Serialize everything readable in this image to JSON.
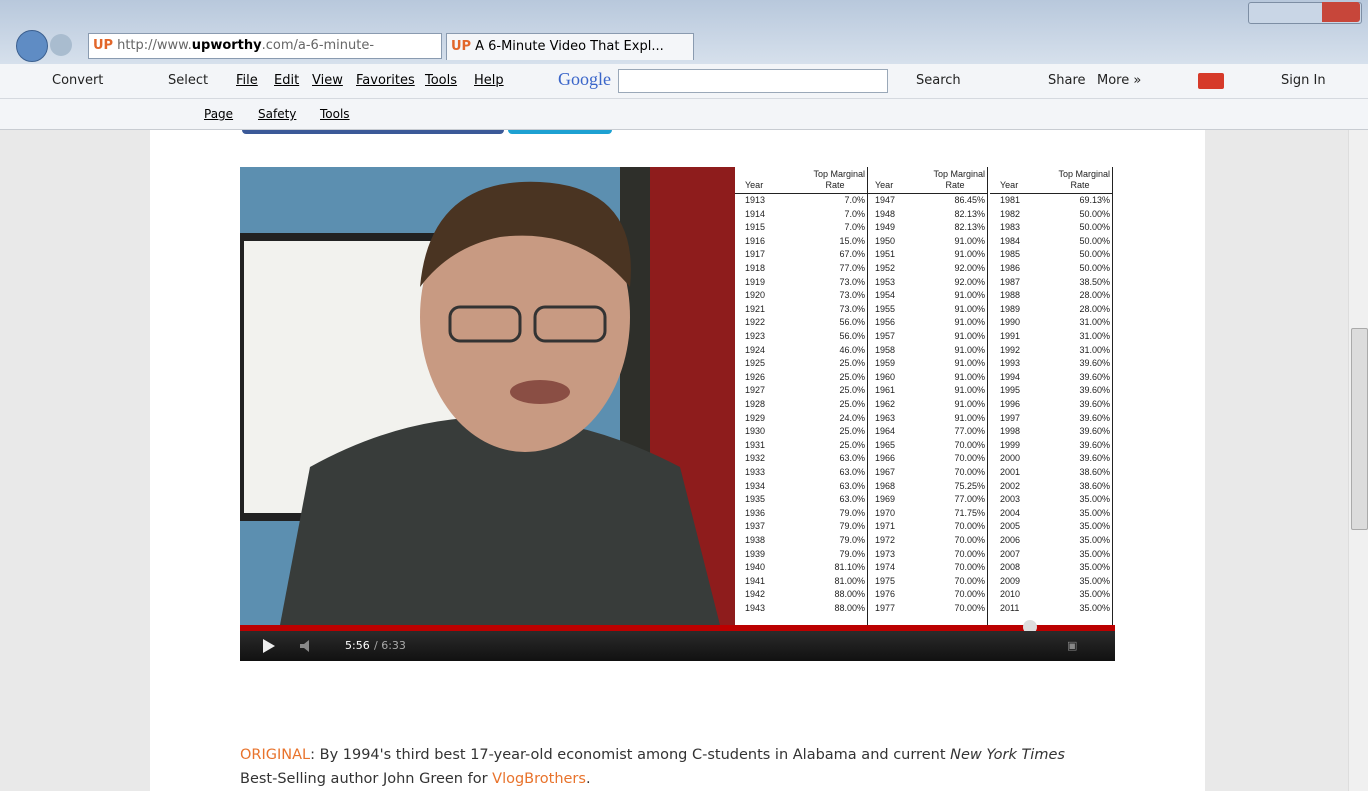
{
  "browser": {
    "url_prefix": "http://www.",
    "url_domain": "upworthy",
    "url_rest": ".com/a-6-minute-",
    "tab_title": "A 6-Minute Video That Expl...",
    "tab_icon": "UP"
  },
  "toolbar1": {
    "convert": "Convert",
    "select": "Select",
    "menu": [
      "File",
      "Edit",
      "View",
      "Favorites",
      "Tools",
      "Help"
    ],
    "google": "Google",
    "search": "Search",
    "share": "Share",
    "more": "More »",
    "sign_in": "Sign In"
  },
  "toolbar2": {
    "menu": [
      "Page",
      "Safety",
      "Tools"
    ]
  },
  "video": {
    "time_current": "5:56",
    "time_total": "/ 6:33",
    "table": {
      "header_year": "Year",
      "header_rate_1": "Top Marginal",
      "header_rate_2": "Rate",
      "columns": [
        [
          [
            "1913",
            "7.0%"
          ],
          [
            "1914",
            "7.0%"
          ],
          [
            "1915",
            "7.0%"
          ],
          [
            "1916",
            "15.0%"
          ],
          [
            "1917",
            "67.0%"
          ],
          [
            "1918",
            "77.0%"
          ],
          [
            "1919",
            "73.0%"
          ],
          [
            "1920",
            "73.0%"
          ],
          [
            "1921",
            "73.0%"
          ],
          [
            "1922",
            "56.0%"
          ],
          [
            "1923",
            "56.0%"
          ],
          [
            "1924",
            "46.0%"
          ],
          [
            "1925",
            "25.0%"
          ],
          [
            "1926",
            "25.0%"
          ],
          [
            "1927",
            "25.0%"
          ],
          [
            "1928",
            "25.0%"
          ],
          [
            "1929",
            "24.0%"
          ],
          [
            "1930",
            "25.0%"
          ],
          [
            "1931",
            "25.0%"
          ],
          [
            "1932",
            "63.0%"
          ],
          [
            "1933",
            "63.0%"
          ],
          [
            "1934",
            "63.0%"
          ],
          [
            "1935",
            "63.0%"
          ],
          [
            "1936",
            "79.0%"
          ],
          [
            "1937",
            "79.0%"
          ],
          [
            "1938",
            "79.0%"
          ],
          [
            "1939",
            "79.0%"
          ],
          [
            "1940",
            "81.10%"
          ],
          [
            "1941",
            "81.00%"
          ],
          [
            "1942",
            "88.00%"
          ],
          [
            "1943",
            "88.00%"
          ]
        ],
        [
          [
            "1947",
            "86.45%"
          ],
          [
            "1948",
            "82.13%"
          ],
          [
            "1949",
            "82.13%"
          ],
          [
            "1950",
            "91.00%"
          ],
          [
            "1951",
            "91.00%"
          ],
          [
            "1952",
            "92.00%"
          ],
          [
            "1953",
            "92.00%"
          ],
          [
            "1954",
            "91.00%"
          ],
          [
            "1955",
            "91.00%"
          ],
          [
            "1956",
            "91.00%"
          ],
          [
            "1957",
            "91.00%"
          ],
          [
            "1958",
            "91.00%"
          ],
          [
            "1959",
            "91.00%"
          ],
          [
            "1960",
            "91.00%"
          ],
          [
            "1961",
            "91.00%"
          ],
          [
            "1962",
            "91.00%"
          ],
          [
            "1963",
            "91.00%"
          ],
          [
            "1964",
            "77.00%"
          ],
          [
            "1965",
            "70.00%"
          ],
          [
            "1966",
            "70.00%"
          ],
          [
            "1967",
            "70.00%"
          ],
          [
            "1968",
            "75.25%"
          ],
          [
            "1969",
            "77.00%"
          ],
          [
            "1970",
            "71.75%"
          ],
          [
            "1971",
            "70.00%"
          ],
          [
            "1972",
            "70.00%"
          ],
          [
            "1973",
            "70.00%"
          ],
          [
            "1974",
            "70.00%"
          ],
          [
            "1975",
            "70.00%"
          ],
          [
            "1976",
            "70.00%"
          ],
          [
            "1977",
            "70.00%"
          ]
        ],
        [
          [
            "1981",
            "69.13%"
          ],
          [
            "1982",
            "50.00%"
          ],
          [
            "1983",
            "50.00%"
          ],
          [
            "1984",
            "50.00%"
          ],
          [
            "1985",
            "50.00%"
          ],
          [
            "1986",
            "50.00%"
          ],
          [
            "1987",
            "38.50%"
          ],
          [
            "1988",
            "28.00%"
          ],
          [
            "1989",
            "28.00%"
          ],
          [
            "1990",
            "31.00%"
          ],
          [
            "1991",
            "31.00%"
          ],
          [
            "1992",
            "31.00%"
          ],
          [
            "1993",
            "39.60%"
          ],
          [
            "1994",
            "39.60%"
          ],
          [
            "1995",
            "39.60%"
          ],
          [
            "1996",
            "39.60%"
          ],
          [
            "1997",
            "39.60%"
          ],
          [
            "1998",
            "39.60%"
          ],
          [
            "1999",
            "39.60%"
          ],
          [
            "2000",
            "39.60%"
          ],
          [
            "2001",
            "38.60%"
          ],
          [
            "2002",
            "38.60%"
          ],
          [
            "2003",
            "35.00%"
          ],
          [
            "2004",
            "35.00%"
          ],
          [
            "2005",
            "35.00%"
          ],
          [
            "2006",
            "35.00%"
          ],
          [
            "2007",
            "35.00%"
          ],
          [
            "2008",
            "35.00%"
          ],
          [
            "2009",
            "35.00%"
          ],
          [
            "2010",
            "35.00%"
          ],
          [
            "2011",
            "35.00%"
          ]
        ]
      ]
    }
  },
  "caption": {
    "lead": "ORIGINAL",
    "text1": ": By 1994's third best 17-year-old economist among C-students in Alabama and current ",
    "italic": "New York Times",
    "text2": "Best-Selling author John Green for ",
    "link": "VlogBrothers",
    "end": "."
  }
}
